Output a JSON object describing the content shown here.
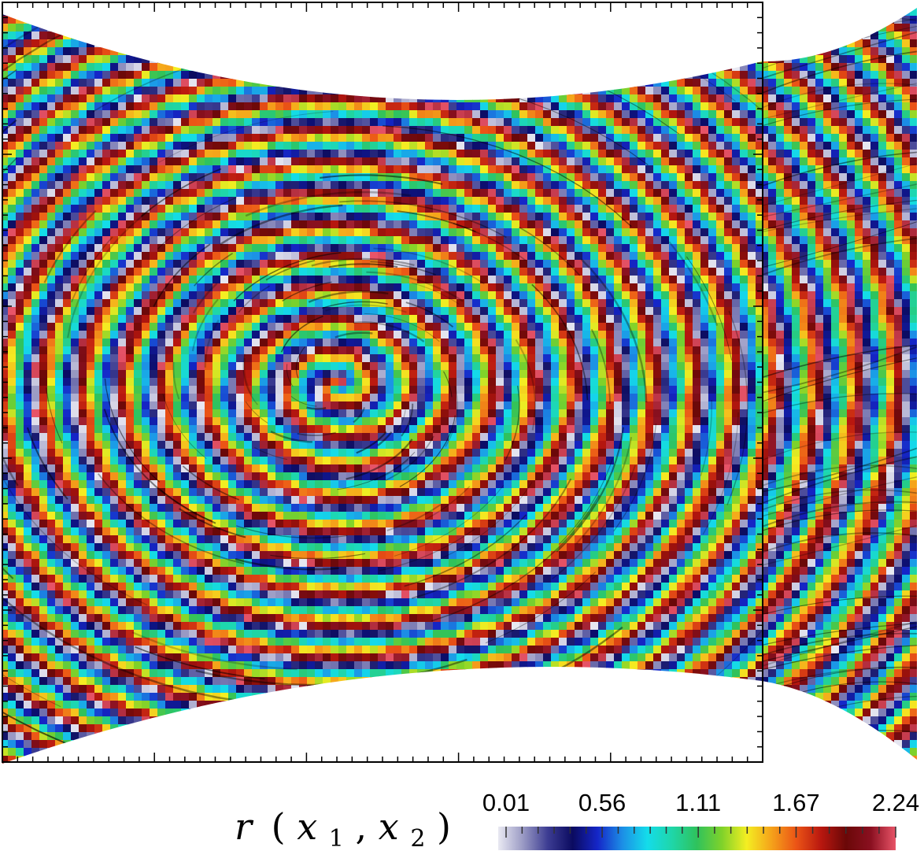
{
  "chart_data": {
    "type": "heatmap",
    "title": "",
    "xlabel": "",
    "ylabel": "",
    "variable_label": {
      "main": "r",
      "open": "(",
      "var1": "x",
      "sub1": "1",
      "comma": ",",
      "var2": "x",
      "sub2": "2",
      "close": ")"
    },
    "colorbar": {
      "tick_labels": [
        "0.01",
        "0.56",
        "1.11",
        "1.67",
        "2.24"
      ],
      "tick_values": [
        0.01,
        0.56,
        1.11,
        1.67,
        2.24
      ],
      "range": [
        0.01,
        2.24
      ],
      "minor_ticks_per_interval": 6,
      "colors": [
        "#e9e9f2",
        "#9a9ac4",
        "#3c3c92",
        "#0b0b60",
        "#1526c8",
        "#1c8fe6",
        "#14dcea",
        "#1fd6a8",
        "#2fc25c",
        "#7fd22a",
        "#f4ee22",
        "#f5a21a",
        "#eb5416",
        "#b8170f",
        "#6a0808",
        "#8a1020",
        "#e85468"
      ]
    },
    "pattern": "spiral",
    "spiral_center": [
      430,
      490
    ],
    "grid": false
  }
}
